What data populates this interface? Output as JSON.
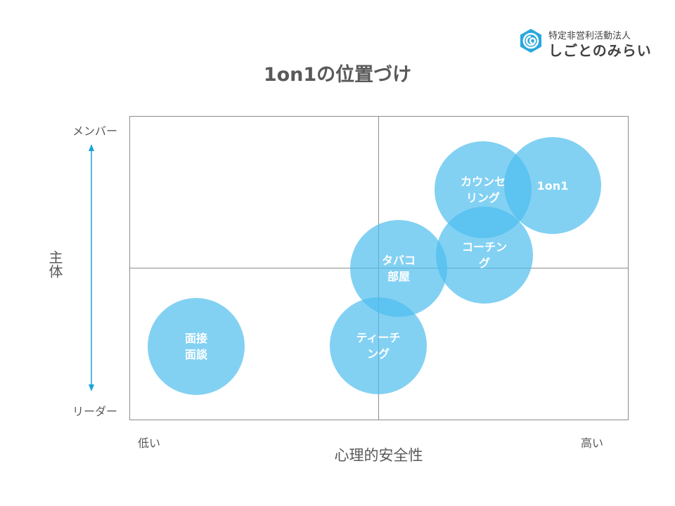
{
  "logo": {
    "org_type": "特定非営利活動法人",
    "name": "しごとのみらい",
    "icon": "spiral-logo-icon",
    "color": "#29a8dc"
  },
  "title": "1on1の位置づけ",
  "y_axis": {
    "title": "主体",
    "top_label": "メンバー",
    "bottom_label": "リーダー"
  },
  "x_axis": {
    "title": "心理的安全性",
    "low_label": "低い",
    "high_label": "高い"
  },
  "bubbles": [
    {
      "label": "面接\n面談"
    },
    {
      "label": "ティーチ\nング"
    },
    {
      "label": "タバコ\n部屋"
    },
    {
      "label": "コーチン\nグ"
    },
    {
      "label": "カウンセ\nリング"
    },
    {
      "label": "1on1"
    }
  ],
  "colors": {
    "bubble": "#4dbeee",
    "arrow": "#1aa3d6",
    "axis_lines": "#8c8c8c",
    "text": "#595959"
  }
}
